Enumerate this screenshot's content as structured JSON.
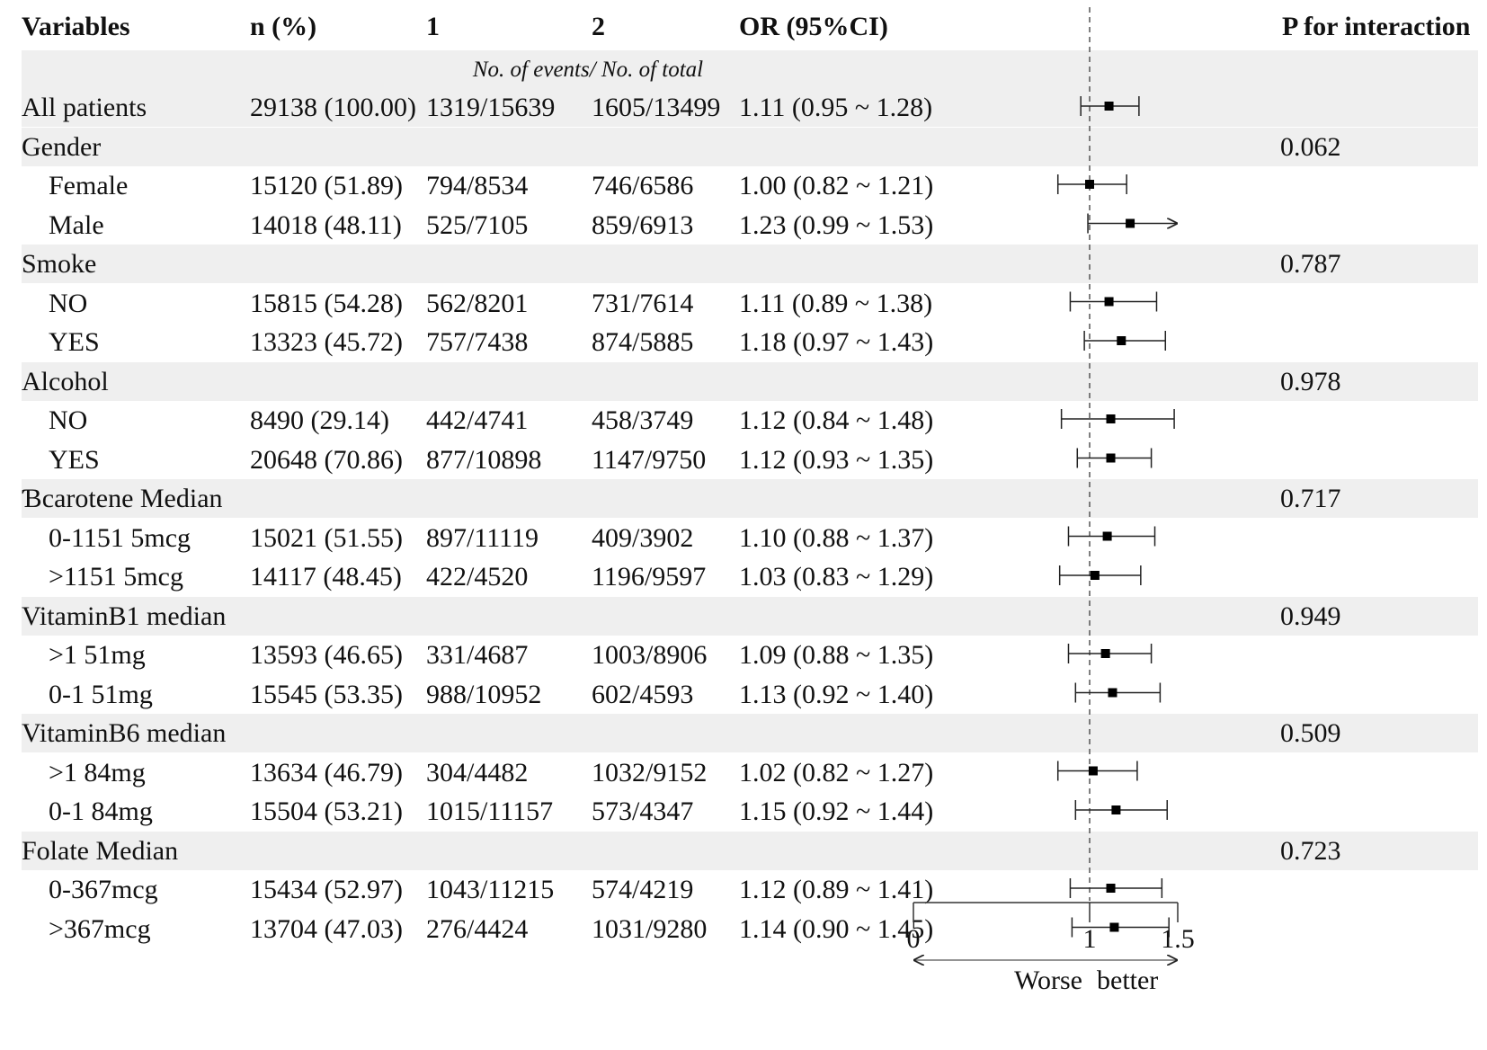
{
  "headers": {
    "variables": "Variables",
    "n_pct": "n (%)",
    "g1": "1",
    "g2": "2",
    "or": "OR (95%CI)",
    "p_inter": "P for interaction"
  },
  "subheader": "No. of events/ No. of total",
  "axis": {
    "ticks": [
      "0",
      "1",
      "1.5"
    ],
    "left_label": "Worse",
    "right_label": "better"
  },
  "rows": [
    {
      "label": "All patients",
      "indent": false,
      "n": "29138 (100.00)",
      "g1": "1319/15639",
      "g2": "1605/13499",
      "or_text": "1.11 (0.95 ~ 1.28)",
      "p": ""
    },
    {
      "label": "Gender",
      "indent": false,
      "n": "",
      "g1": "",
      "g2": "",
      "or_text": "",
      "p": "0.062"
    },
    {
      "label": "Female",
      "indent": true,
      "n": "15120 (51.89)",
      "g1": "794/8534",
      "g2": "746/6586",
      "or_text": "1.00 (0.82 ~ 1.21)",
      "p": ""
    },
    {
      "label": "Male",
      "indent": true,
      "n": "14018 (48.11)",
      "g1": "525/7105",
      "g2": "859/6913",
      "or_text": "1.23 (0.99 ~ 1.53)",
      "p": ""
    },
    {
      "label": "Smoke",
      "indent": false,
      "n": "",
      "g1": "",
      "g2": "",
      "or_text": "",
      "p": "0.787"
    },
    {
      "label": "NO",
      "indent": true,
      "n": "15815 (54.28)",
      "g1": "562/8201",
      "g2": "731/7614",
      "or_text": "1.11 (0.89 ~ 1.38)",
      "p": ""
    },
    {
      "label": "YES",
      "indent": true,
      "n": "13323 (45.72)",
      "g1": "757/7438",
      "g2": "874/5885",
      "or_text": "1.18 (0.97 ~ 1.43)",
      "p": ""
    },
    {
      "label": "Alcohol",
      "indent": false,
      "n": "",
      "g1": "",
      "g2": "",
      "or_text": "",
      "p": "0.978"
    },
    {
      "label": "NO",
      "indent": true,
      "n": "8490 (29.14)",
      "g1": "442/4741",
      "g2": "458/3749",
      "or_text": "1.12 (0.84 ~ 1.48)",
      "p": ""
    },
    {
      "label": "YES",
      "indent": true,
      "n": "20648 (70.86)",
      "g1": "877/10898",
      "g2": "1147/9750",
      "or_text": "1.12 (0.93 ~ 1.35)",
      "p": ""
    },
    {
      "label": "Ɓcarotene Median",
      "indent": false,
      "n": "",
      "g1": "",
      "g2": "",
      "or_text": "",
      "p": "0.717"
    },
    {
      "label": "0-1151 5mcg",
      "indent": true,
      "n": "15021 (51.55)",
      "g1": "897/11119",
      "g2": "409/3902",
      "or_text": "1.10 (0.88 ~ 1.37)",
      "p": ""
    },
    {
      "label": ">1151 5mcg",
      "indent": true,
      "n": "14117 (48.45)",
      "g1": "422/4520",
      "g2": "1196/9597",
      "or_text": "1.03 (0.83 ~ 1.29)",
      "p": ""
    },
    {
      "label": "VitaminB1 median",
      "indent": false,
      "n": "",
      "g1": "",
      "g2": "",
      "or_text": "",
      "p": "0.949"
    },
    {
      "label": ">1 51mg",
      "indent": true,
      "n": "13593 (46.65)",
      "g1": "331/4687",
      "g2": "1003/8906",
      "or_text": "1.09 (0.88 ~ 1.35)",
      "p": ""
    },
    {
      "label": "0-1 51mg",
      "indent": true,
      "n": "15545 (53.35)",
      "g1": "988/10952",
      "g2": "602/4593",
      "or_text": "1.13 (0.92 ~ 1.40)",
      "p": ""
    },
    {
      "label": "VitaminB6 median",
      "indent": false,
      "n": "",
      "g1": "",
      "g2": "",
      "or_text": "",
      "p": "0.509"
    },
    {
      "label": ">1 84mg",
      "indent": true,
      "n": "13634 (46.79)",
      "g1": "304/4482",
      "g2": "1032/9152",
      "or_text": "1.02 (0.82 ~ 1.27)",
      "p": ""
    },
    {
      "label": "0-1 84mg",
      "indent": true,
      "n": "15504 (53.21)",
      "g1": "1015/11157",
      "g2": "573/4347",
      "or_text": "1.15 (0.92 ~ 1.44)",
      "p": ""
    },
    {
      "label": "Folate Median",
      "indent": false,
      "n": "",
      "g1": "",
      "g2": "",
      "or_text": "",
      "p": "0.723"
    },
    {
      "label": "0-367mcg",
      "indent": true,
      "n": "15434 (52.97)",
      "g1": "1043/11215",
      "g2": "574/4219",
      "or_text": "1.12 (0.89 ~ 1.41)",
      "p": ""
    },
    {
      "label": ">367mcg",
      "indent": true,
      "n": "13704 (47.03)",
      "g1": "276/4424",
      "g2": "1031/9280",
      "or_text": "1.14 (0.90 ~ 1.45)",
      "p": ""
    }
  ],
  "chart_data": {
    "type": "forest",
    "reference_line": 1,
    "xlim": [
      0,
      1.5
    ],
    "xticks": [
      0,
      1,
      1.5
    ],
    "points": [
      {
        "row": 0,
        "or": 1.11,
        "lo": 0.95,
        "hi": 1.28,
        "arrow": false
      },
      {
        "row": 2,
        "or": 1.0,
        "lo": 0.82,
        "hi": 1.21,
        "arrow": false
      },
      {
        "row": 3,
        "or": 1.23,
        "lo": 0.99,
        "hi": 1.53,
        "arrow": true
      },
      {
        "row": 5,
        "or": 1.11,
        "lo": 0.89,
        "hi": 1.38,
        "arrow": false
      },
      {
        "row": 6,
        "or": 1.18,
        "lo": 0.97,
        "hi": 1.43,
        "arrow": false
      },
      {
        "row": 8,
        "or": 1.12,
        "lo": 0.84,
        "hi": 1.48,
        "arrow": false
      },
      {
        "row": 9,
        "or": 1.12,
        "lo": 0.93,
        "hi": 1.35,
        "arrow": false
      },
      {
        "row": 11,
        "or": 1.1,
        "lo": 0.88,
        "hi": 1.37,
        "arrow": false
      },
      {
        "row": 12,
        "or": 1.03,
        "lo": 0.83,
        "hi": 1.29,
        "arrow": false
      },
      {
        "row": 14,
        "or": 1.09,
        "lo": 0.88,
        "hi": 1.35,
        "arrow": false
      },
      {
        "row": 15,
        "or": 1.13,
        "lo": 0.92,
        "hi": 1.4,
        "arrow": false
      },
      {
        "row": 17,
        "or": 1.02,
        "lo": 0.82,
        "hi": 1.27,
        "arrow": false
      },
      {
        "row": 18,
        "or": 1.15,
        "lo": 0.92,
        "hi": 1.44,
        "arrow": false
      },
      {
        "row": 20,
        "or": 1.12,
        "lo": 0.89,
        "hi": 1.41,
        "arrow": false
      },
      {
        "row": 21,
        "or": 1.14,
        "lo": 0.9,
        "hi": 1.45,
        "arrow": false
      }
    ]
  }
}
